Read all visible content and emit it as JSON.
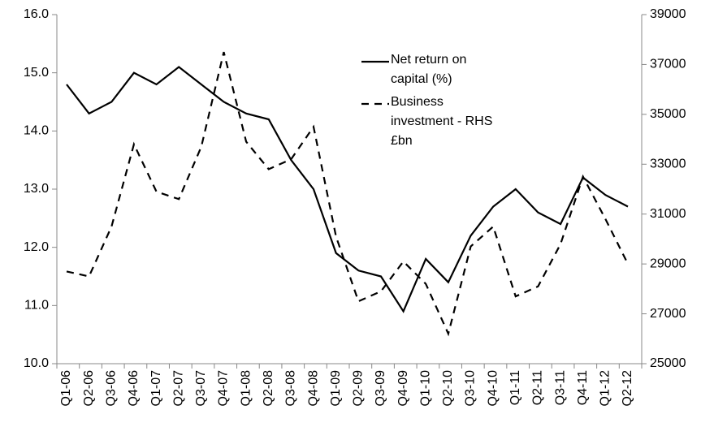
{
  "chart_data": {
    "type": "line",
    "categories": [
      "Q1-06",
      "Q2-06",
      "Q3-06",
      "Q4-06",
      "Q1-07",
      "Q2-07",
      "Q3-07",
      "Q4-07",
      "Q1-08",
      "Q2-08",
      "Q3-08",
      "Q4-08",
      "Q1-09",
      "Q2-09",
      "Q3-09",
      "Q4-09",
      "Q1-10",
      "Q2-10",
      "Q3-10",
      "Q4-10",
      "Q1-11",
      "Q2-11",
      "Q3-11",
      "Q4-11",
      "Q1-12",
      "Q2-12"
    ],
    "series": [
      {
        "name": "Net return on capital (%)",
        "color": "#000000",
        "dash": "solid",
        "values": [
          14.8,
          14.3,
          14.5,
          15.0,
          14.8,
          15.1,
          14.8,
          14.5,
          14.3,
          14.2,
          13.5,
          13.0,
          11.9,
          11.6,
          11.5,
          10.9,
          11.8,
          11.4,
          12.2,
          12.7,
          13.0,
          12.6,
          12.4,
          13.2,
          12.9,
          12.7
        ]
      },
      {
        "name": "Business investment - RHS £bn",
        "color": "#000000",
        "dash": "dashed",
        "axis": "y2",
        "values": [
          28700,
          28500,
          30500,
          33800,
          31900,
          31600,
          33700,
          37500,
          33900,
          32800,
          33200,
          34500,
          30100,
          27500,
          27900,
          29100,
          28200,
          26200,
          29700,
          30500,
          27700,
          28100,
          29800,
          32500,
          30800,
          29000
        ]
      }
    ],
    "ylim": [
      10,
      16
    ],
    "yticks": [
      {
        "value": 10,
        "label": "10.0"
      },
      {
        "value": 11,
        "label": "11.0"
      },
      {
        "value": 12,
        "label": "12.0"
      },
      {
        "value": 13,
        "label": "13.0"
      },
      {
        "value": 14,
        "label": "14.0"
      },
      {
        "value": 15,
        "label": "15.0"
      },
      {
        "value": 16,
        "label": "16.0"
      }
    ],
    "y2lim": [
      25000,
      39000
    ],
    "y2ticks": [
      25000,
      27000,
      29000,
      31000,
      33000,
      35000,
      37000,
      39000
    ]
  }
}
